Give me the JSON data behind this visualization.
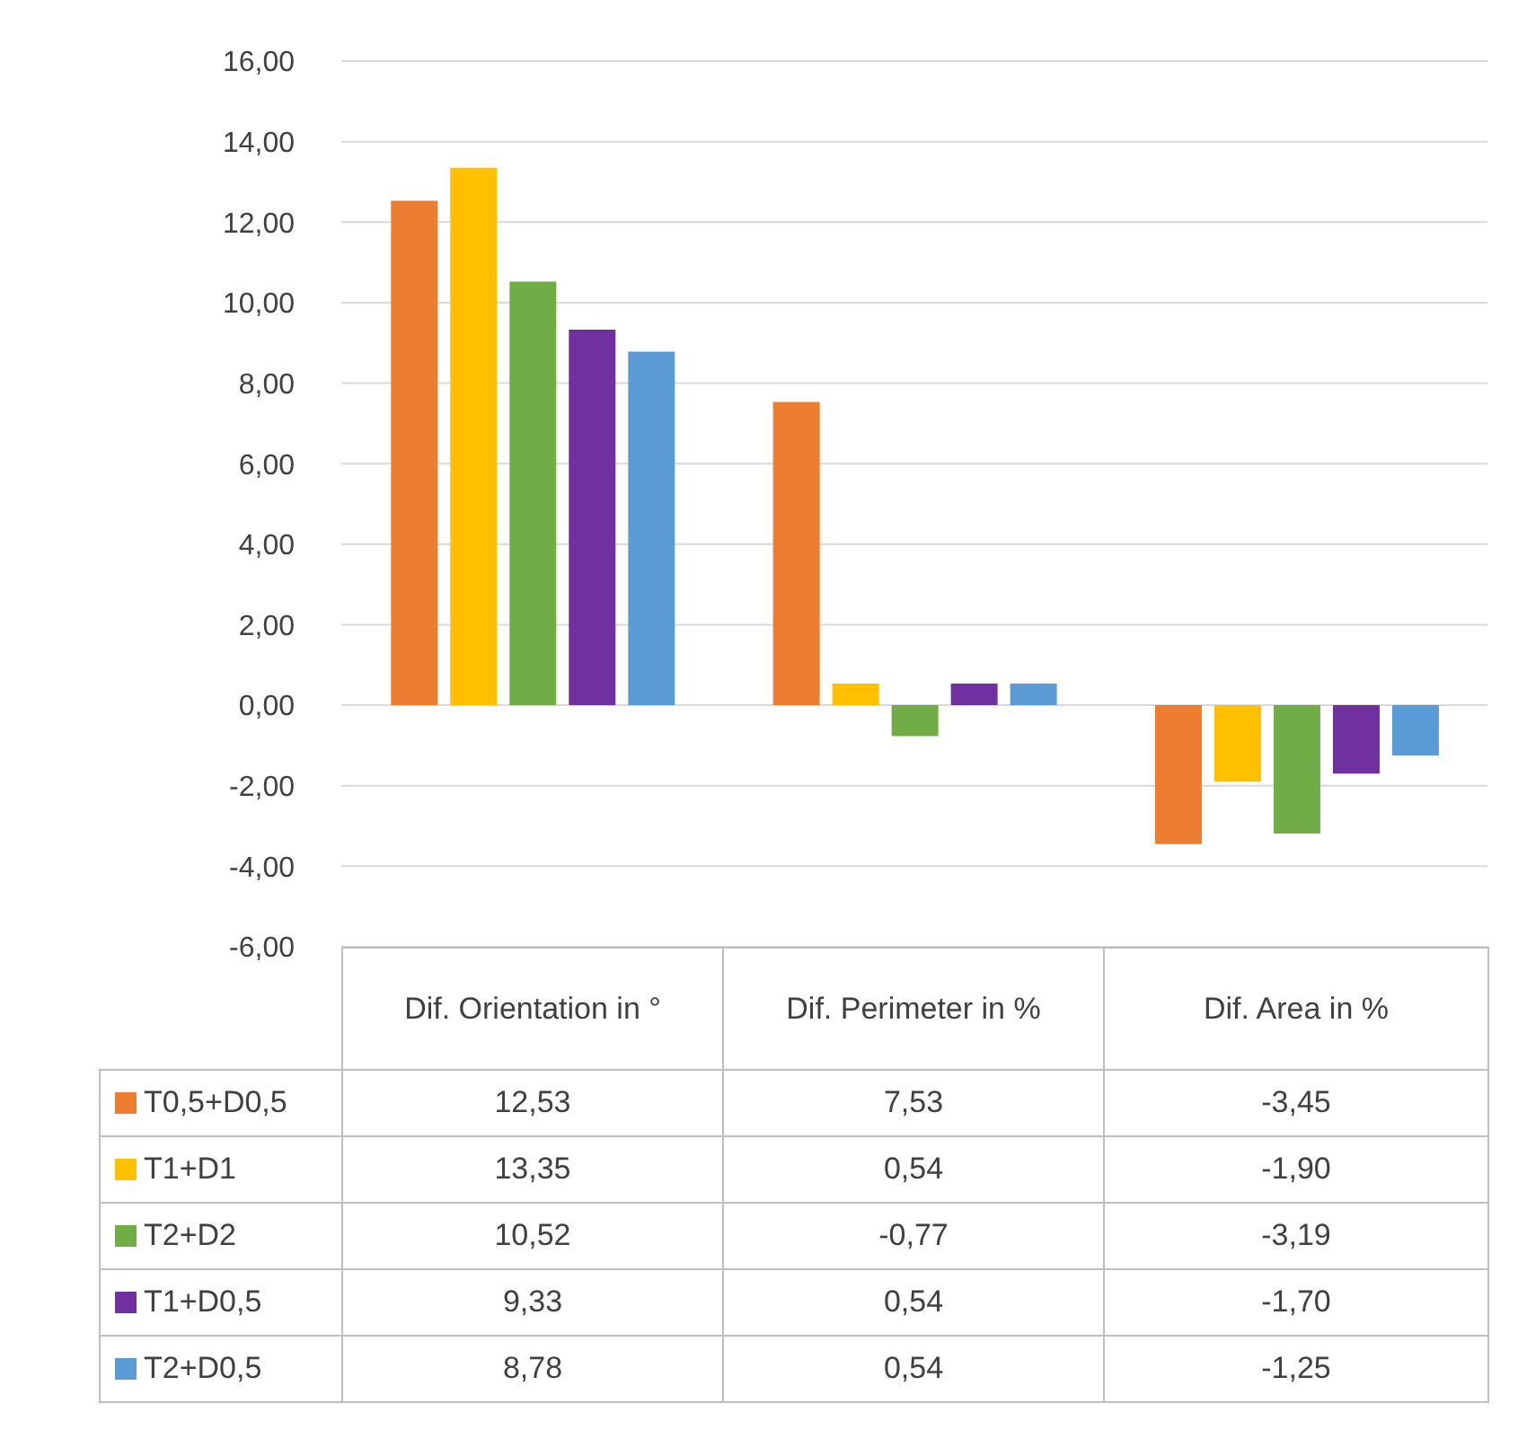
{
  "chart_data": {
    "type": "bar",
    "categories": [
      "Dif. Orientation in °",
      "Dif. Perimeter in %",
      "Dif. Area in %"
    ],
    "series": [
      {
        "name": "T0,5+D0,5",
        "color": "#ed7d31",
        "values": [
          12.53,
          7.53,
          -3.45
        ],
        "value_labels": [
          "12,53",
          "7,53",
          "-3,45"
        ]
      },
      {
        "name": "T1+D1",
        "color": "#ffc000",
        "values": [
          13.35,
          0.54,
          -1.9
        ],
        "value_labels": [
          "13,35",
          "0,54",
          "-1,90"
        ]
      },
      {
        "name": "T2+D2",
        "color": "#70ad47",
        "values": [
          10.52,
          -0.77,
          -3.19
        ],
        "value_labels": [
          "10,52",
          "-0,77",
          "-3,19"
        ]
      },
      {
        "name": "T1+D0,5",
        "color": "#7030a0",
        "values": [
          9.33,
          0.54,
          -1.7
        ],
        "value_labels": [
          "9,33",
          "0,54",
          "-1,70"
        ]
      },
      {
        "name": "T2+D0,5",
        "color": "#5b9bd5",
        "values": [
          8.78,
          0.54,
          -1.25
        ],
        "value_labels": [
          "8,78",
          "0,54",
          "-1,25"
        ]
      }
    ],
    "ylim": [
      -6,
      16
    ],
    "yticks": [
      {
        "value": -6,
        "label": "-6,00"
      },
      {
        "value": -4,
        "label": "-4,00"
      },
      {
        "value": -2,
        "label": "-2,00"
      },
      {
        "value": 0,
        "label": "0,00"
      },
      {
        "value": 2,
        "label": "2,00"
      },
      {
        "value": 4,
        "label": "4,00"
      },
      {
        "value": 6,
        "label": "6,00"
      },
      {
        "value": 8,
        "label": "8,00"
      },
      {
        "value": 10,
        "label": "10,00"
      },
      {
        "value": 12,
        "label": "12,00"
      },
      {
        "value": 14,
        "label": "14,00"
      },
      {
        "value": 16,
        "label": "16,00"
      }
    ],
    "grid": "y",
    "legend": "bottom"
  }
}
